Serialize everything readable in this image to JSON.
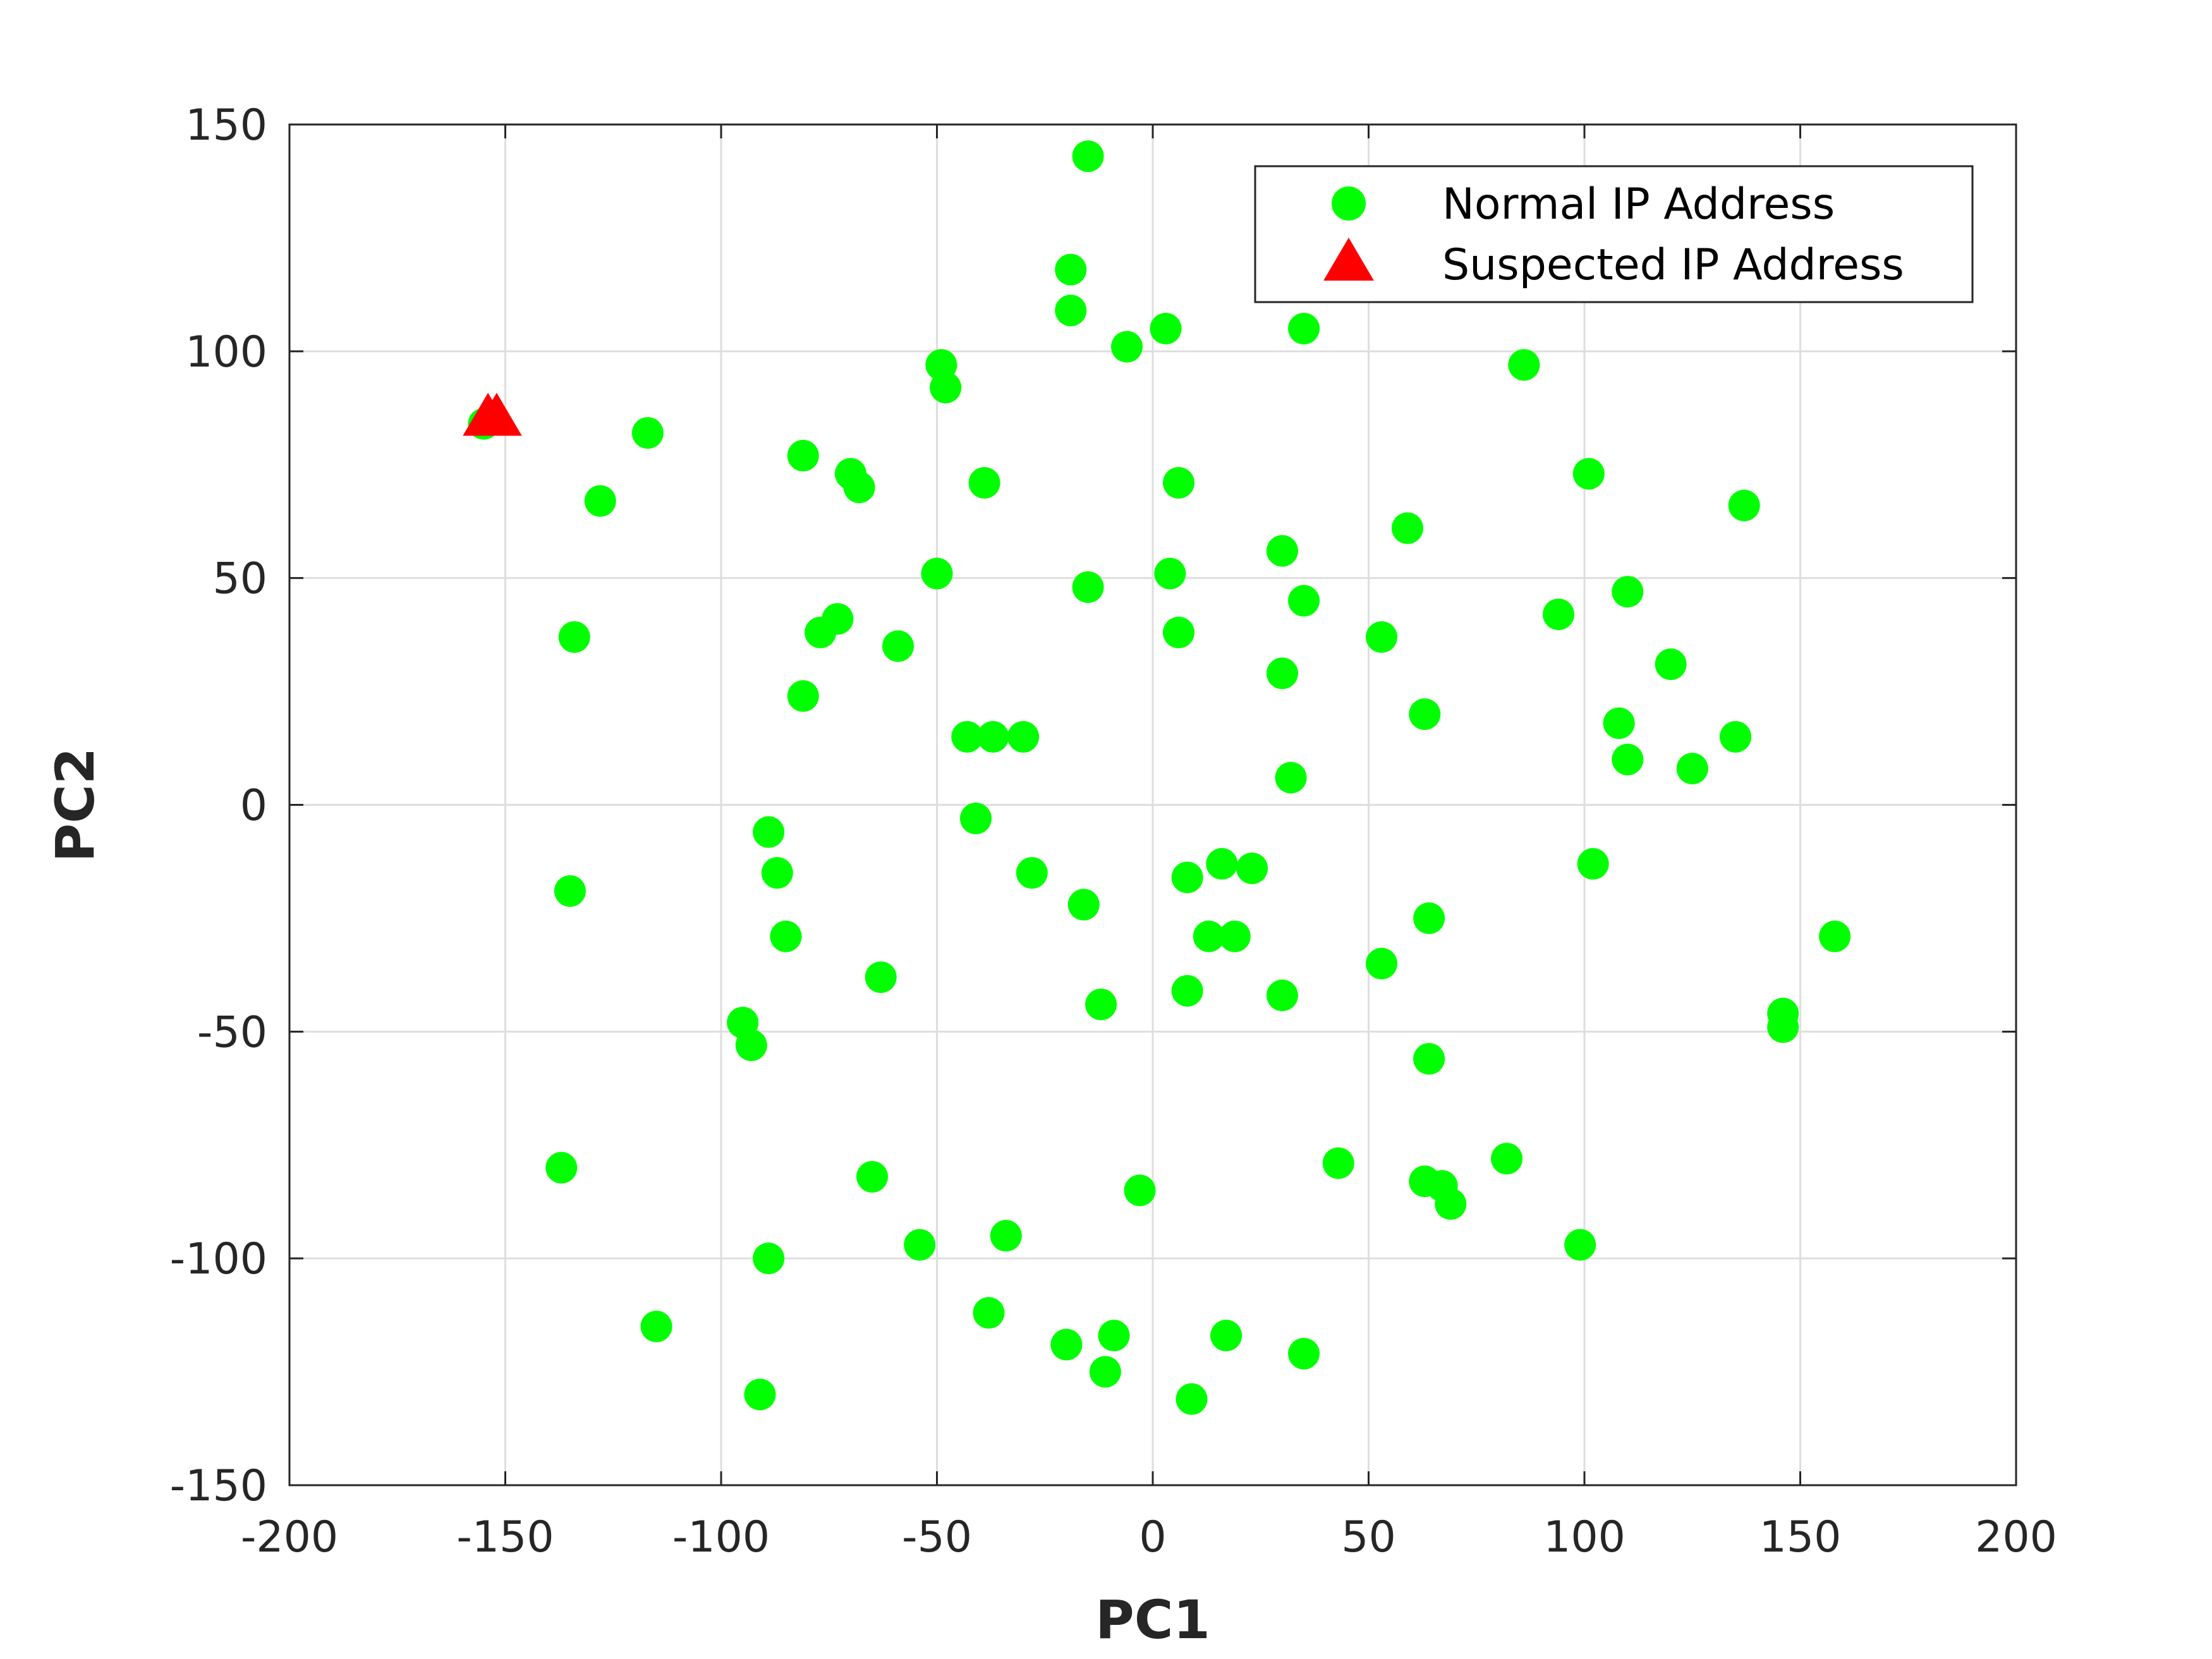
{
  "chart_data": {
    "type": "scatter",
    "xlabel": "PC1",
    "ylabel": "PC2",
    "xlim": [
      -200,
      200
    ],
    "ylim": [
      -150,
      150
    ],
    "xticks": [
      -200,
      -150,
      -100,
      -50,
      0,
      50,
      100,
      150,
      200
    ],
    "yticks": [
      -150,
      -100,
      -50,
      0,
      50,
      100,
      150
    ],
    "grid": true,
    "legend_position": "top-right",
    "series": [
      {
        "name": "Normal IP Address",
        "marker": "circle",
        "color": "#00ff00",
        "points": [
          [
            -15,
            143
          ],
          [
            -19,
            118
          ],
          [
            -19,
            109
          ],
          [
            -6,
            101
          ],
          [
            3,
            105
          ],
          [
            35,
            105
          ],
          [
            -49,
            97
          ],
          [
            -48,
            92
          ],
          [
            86,
            97
          ],
          [
            -155,
            84
          ],
          [
            -117,
            82
          ],
          [
            -128,
            67
          ],
          [
            -81,
            77
          ],
          [
            -70,
            73
          ],
          [
            -68,
            70
          ],
          [
            -39,
            71
          ],
          [
            6,
            71
          ],
          [
            101,
            73
          ],
          [
            137,
            66
          ],
          [
            59,
            61
          ],
          [
            30,
            56
          ],
          [
            -50,
            51
          ],
          [
            -15,
            48
          ],
          [
            4,
            51
          ],
          [
            35,
            45
          ],
          [
            110,
            47
          ],
          [
            94,
            42
          ],
          [
            -134,
            37
          ],
          [
            -73,
            41
          ],
          [
            -77,
            38
          ],
          [
            -59,
            35
          ],
          [
            6,
            38
          ],
          [
            53,
            37
          ],
          [
            120,
            31
          ],
          [
            -81,
            24
          ],
          [
            30,
            29
          ],
          [
            108,
            18
          ],
          [
            110,
            10
          ],
          [
            63,
            20
          ],
          [
            125,
            8
          ],
          [
            135,
            15
          ],
          [
            -43,
            15
          ],
          [
            -37,
            15
          ],
          [
            -30,
            15
          ],
          [
            32,
            6
          ],
          [
            -89,
            -6
          ],
          [
            -41,
            -3
          ],
          [
            -87,
            -15
          ],
          [
            -28,
            -15
          ],
          [
            8,
            -16
          ],
          [
            16,
            -13
          ],
          [
            23,
            -14
          ],
          [
            102,
            -13
          ],
          [
            -135,
            -19
          ],
          [
            -85,
            -29
          ],
          [
            -16,
            -22
          ],
          [
            13,
            -29
          ],
          [
            19,
            -29
          ],
          [
            64,
            -25
          ],
          [
            158,
            -29
          ],
          [
            -63,
            -38
          ],
          [
            53,
            -35
          ],
          [
            8,
            -41
          ],
          [
            30,
            -42
          ],
          [
            -12,
            -44
          ],
          [
            -95,
            -48
          ],
          [
            -93,
            -53
          ],
          [
            146,
            -46
          ],
          [
            146,
            -49
          ],
          [
            64,
            -56
          ],
          [
            -137,
            -80
          ],
          [
            -65,
            -82
          ],
          [
            -3,
            -85
          ],
          [
            43,
            -79
          ],
          [
            82,
            -78
          ],
          [
            63,
            -83
          ],
          [
            67,
            -84
          ],
          [
            69,
            -88
          ],
          [
            -54,
            -97
          ],
          [
            -34,
            -95
          ],
          [
            99,
            -97
          ],
          [
            -89,
            -100
          ],
          [
            -115,
            -115
          ],
          [
            -38,
            -112
          ],
          [
            -20,
            -119
          ],
          [
            -9,
            -117
          ],
          [
            17,
            -117
          ],
          [
            35,
            -121
          ],
          [
            -11,
            -125
          ],
          [
            -91,
            -130
          ],
          [
            9,
            -131
          ]
        ]
      },
      {
        "name": "Suspected IP Address",
        "marker": "triangle",
        "color": "#ff0000",
        "points": [
          [
            -154,
            85
          ],
          [
            -152,
            85
          ]
        ]
      }
    ]
  }
}
